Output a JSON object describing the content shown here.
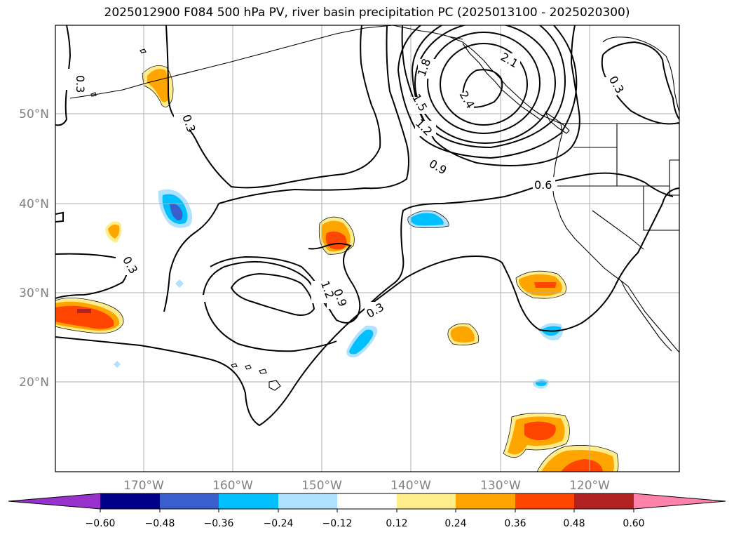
{
  "title": "2025012900 F084 500 hPa PV, river basin precipitation PC (2025013100 - 2025020300)",
  "lat_labels": [
    "50°N",
    "40°N",
    "30°N",
    "20°N"
  ],
  "lon_labels": [
    "170°W",
    "160°W",
    "150°W",
    "140°W",
    "130°W",
    "120°W"
  ],
  "contour_labels": [
    "0.3",
    "0.3",
    "0.3",
    "0.3",
    "0.3",
    "0.6",
    "0.9",
    "1.2",
    "1.5",
    "1.8",
    "2.1",
    "2.4",
    "0.9",
    "1.2"
  ],
  "colorbar": {
    "colors": [
      "#9932cc",
      "#00008b",
      "#3a5fcd",
      "#00bfff",
      "#b0e2ff",
      "#ffffff",
      "#ffec8b",
      "#ffa500",
      "#ff4500",
      "#b22222",
      "#ff82ab"
    ],
    "tick_labels": [
      "−0.60",
      "−0.48",
      "−0.36",
      "−0.24",
      "−0.12",
      "0.12",
      "0.24",
      "0.36",
      "0.48",
      "0.60"
    ]
  },
  "fill_colors": {
    "light_yellow": "#ffec8b",
    "orange": "#ffa500",
    "red_orange": "#ff4500",
    "dark_red": "#b22222",
    "light_blue": "#b0e2ff",
    "deep_sky_blue": "#00bfff",
    "royal_blue": "#3a5fcd"
  }
}
